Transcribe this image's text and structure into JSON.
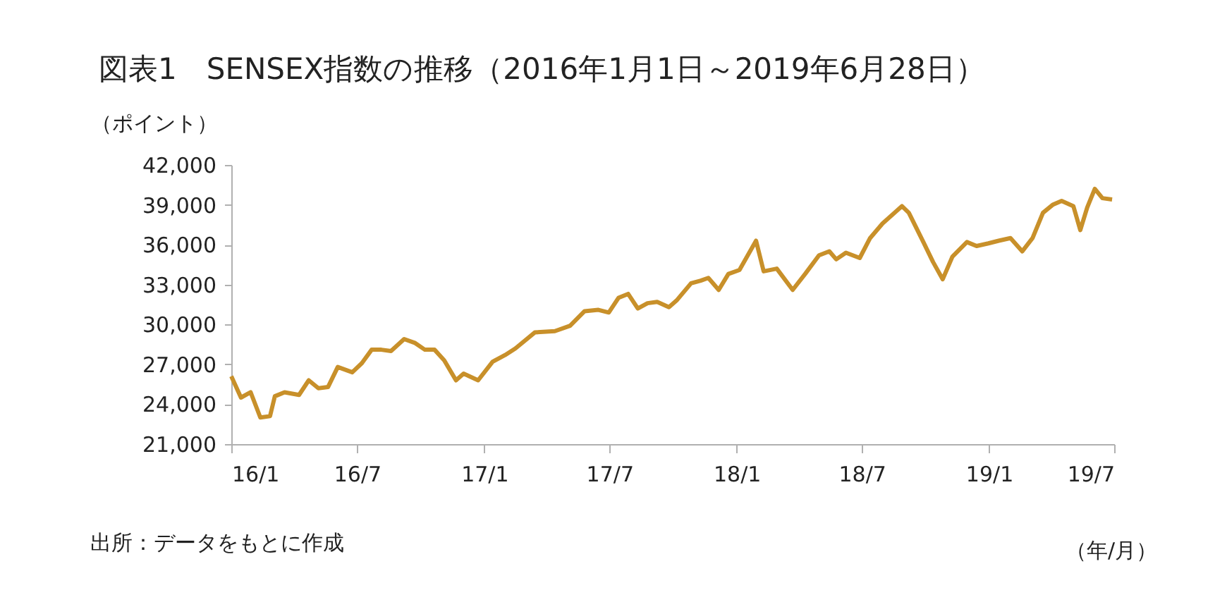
{
  "chart_data": {
    "type": "line",
    "title": "図表1　SENSEX指数の推移（2016年1月1日～2019年6月28日）",
    "ylabel": "（ポイント）",
    "xlabel": "（年/月）",
    "annotations": [
      "出所：データをもとに作成"
    ],
    "x": [
      "2016-01-01",
      "2016-01-15",
      "2016-01-29",
      "2016-02-12",
      "2016-02-26",
      "2016-03-04",
      "2016-03-18",
      "2016-04-08",
      "2016-04-22",
      "2016-05-06",
      "2016-05-20",
      "2016-06-03",
      "2016-06-24",
      "2016-07-08",
      "2016-07-22",
      "2016-08-05",
      "2016-08-19",
      "2016-09-07",
      "2016-09-23",
      "2016-10-07",
      "2016-10-21",
      "2016-11-04",
      "2016-11-21",
      "2016-12-02",
      "2016-12-23",
      "2017-01-13",
      "2017-01-31",
      "2017-02-15",
      "2017-03-15",
      "2017-04-13",
      "2017-05-05",
      "2017-05-26",
      "2017-06-15",
      "2017-06-30",
      "2017-07-14",
      "2017-07-28",
      "2017-08-11",
      "2017-08-25",
      "2017-09-08",
      "2017-09-25",
      "2017-10-06",
      "2017-10-27",
      "2017-11-10",
      "2017-11-21",
      "2017-12-06",
      "2017-12-20",
      "2018-01-05",
      "2018-01-29",
      "2018-02-09",
      "2018-02-28",
      "2018-03-23",
      "2018-04-10",
      "2018-04-30",
      "2018-05-15",
      "2018-05-25",
      "2018-06-08",
      "2018-06-28",
      "2018-07-13",
      "2018-07-31",
      "2018-08-28",
      "2018-09-07",
      "2018-09-28",
      "2018-10-12",
      "2018-10-26",
      "2018-11-09",
      "2018-11-30",
      "2018-12-14",
      "2018-12-31",
      "2019-01-15",
      "2019-02-01",
      "2019-02-18",
      "2019-03-05",
      "2019-03-20",
      "2019-04-03",
      "2019-04-16",
      "2019-05-03",
      "2019-05-13",
      "2019-05-23",
      "2019-06-03",
      "2019-06-14",
      "2019-06-28"
    ],
    "series": [
      {
        "color": "#c8902a",
        "values": [
          26100,
          24500,
          24900,
          23000,
          23100,
          24600,
          24900,
          24700,
          25800,
          25200,
          25300,
          26800,
          26400,
          27100,
          28100,
          28100,
          28000,
          28900,
          28600,
          28100,
          28100,
          27300,
          25800,
          26300,
          25800,
          27200,
          27700,
          28200,
          29400,
          29500,
          29900,
          31000,
          31100,
          30900,
          32000,
          32300,
          31200,
          31600,
          31700,
          31300,
          31800,
          33100,
          33300,
          33500,
          32600,
          33800,
          34100,
          36300,
          34000,
          34200,
          32600,
          33800,
          35200,
          35500,
          34900,
          35400,
          35000,
          36500,
          37600,
          38900,
          38400,
          36200,
          34700,
          33400,
          35100,
          36200,
          35900,
          36100,
          36300,
          36500,
          35500,
          36500,
          38400,
          39000,
          39300,
          38900,
          37100,
          38800,
          40200,
          39500,
          39400
        ]
      }
    ],
    "xlim": [
      "2016-01-01",
      "2019-07-01"
    ],
    "xticks": [
      {
        "value": "2016-01-01",
        "label": "16/1"
      },
      {
        "value": "2016-07-01",
        "label": "16/7"
      },
      {
        "value": "2017-01-01",
        "label": "17/1"
      },
      {
        "value": "2017-07-01",
        "label": "17/7"
      },
      {
        "value": "2018-01-01",
        "label": "18/1"
      },
      {
        "value": "2018-07-01",
        "label": "18/7"
      },
      {
        "value": "2019-01-01",
        "label": "19/1"
      },
      {
        "value": "2019-07-01",
        "label": "19/7"
      }
    ],
    "ylim": [
      21000,
      42000
    ],
    "yticks": [
      {
        "value": 21000,
        "label": "21,000"
      },
      {
        "value": 24000,
        "label": "24,000"
      },
      {
        "value": 27000,
        "label": "27,000"
      },
      {
        "value": 30000,
        "label": "30,000"
      },
      {
        "value": 33000,
        "label": "33,000"
      },
      {
        "value": 36000,
        "label": "36,000"
      },
      {
        "value": 39000,
        "label": "39,000"
      },
      {
        "value": 42000,
        "label": "42,000"
      }
    ],
    "grid": false,
    "marker": "none",
    "line_style": "solid"
  }
}
